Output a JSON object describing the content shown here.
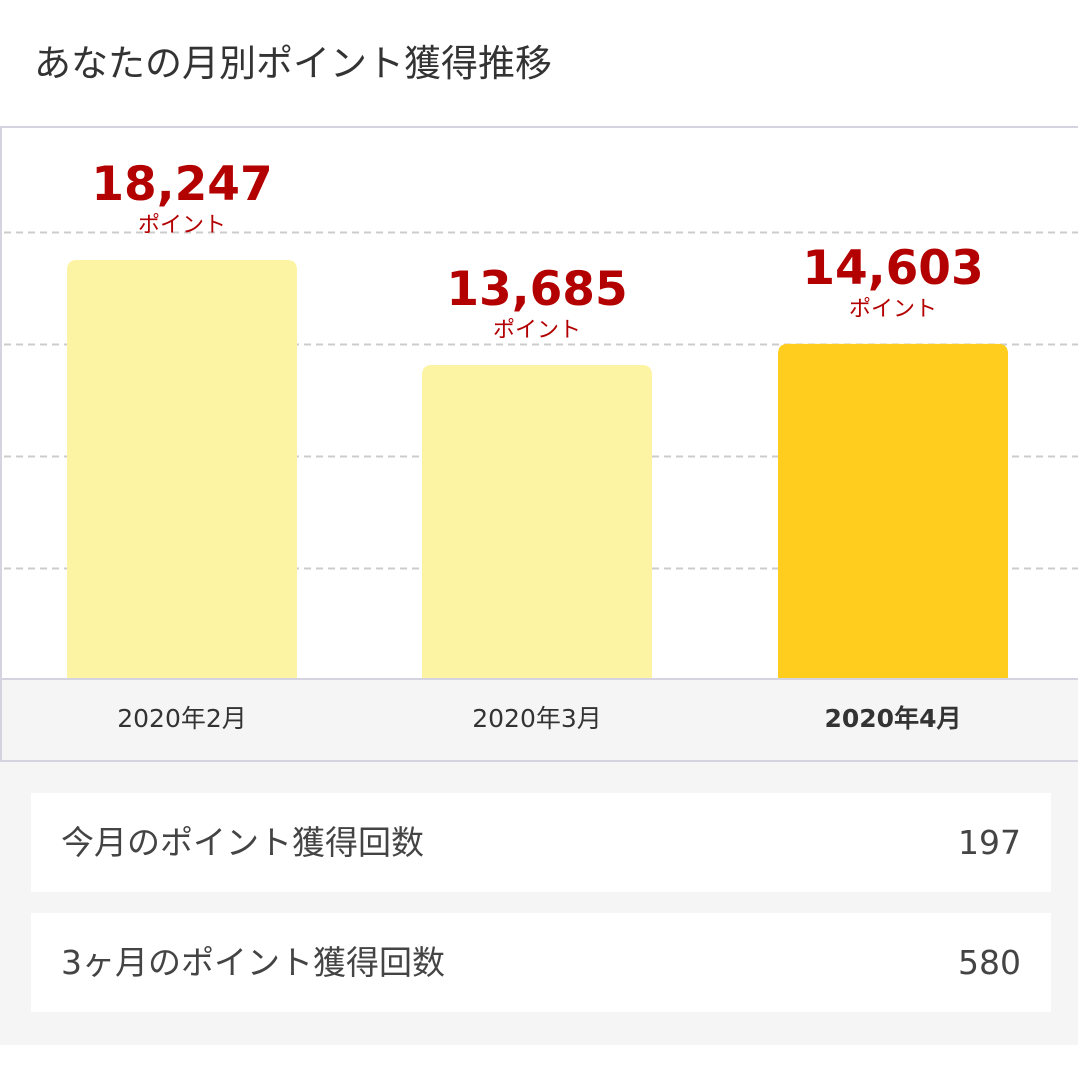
{
  "header": {
    "title": "あなたの月別ポイント獲得推移"
  },
  "chart_data": {
    "type": "bar",
    "categories": [
      "2020年2月",
      "2020年3月",
      "2020年4月"
    ],
    "values": [
      18247,
      13685,
      14603
    ],
    "value_labels": [
      "18,247",
      "13,685",
      "14,603"
    ],
    "unit_label": "ポイント",
    "highlighted_index": 2,
    "colors": {
      "bar": "#fcf4a3",
      "bar_highlight": "#fecd1d",
      "value_text": "#b30000",
      "gridline": "#cccccc"
    },
    "grid": true,
    "legend": "none"
  },
  "summary": {
    "rows": [
      {
        "label": "今月のポイント獲得回数",
        "value": "197"
      },
      {
        "label": "3ヶ月のポイント獲得回数",
        "value": "580"
      }
    ]
  }
}
